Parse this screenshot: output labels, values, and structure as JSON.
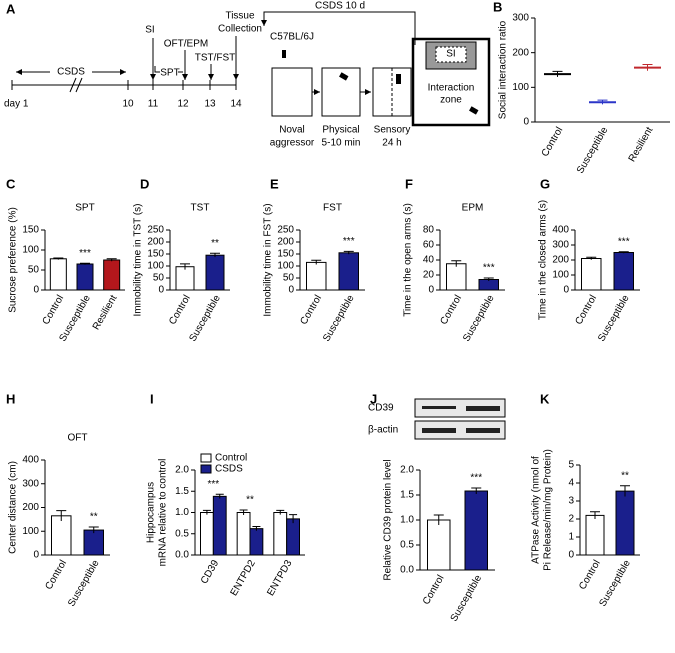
{
  "panel_a": {
    "label": "A",
    "timeline": {
      "start": "day 1",
      "days": [
        "10",
        "11",
        "12",
        "13",
        "14"
      ],
      "csds": "CSDS",
      "si": "SI",
      "oft_epm": "OFT/EPM",
      "spt": "SPT",
      "tst_fst": "TST/FST",
      "tissue": [
        "Tissue",
        "Collection"
      ]
    },
    "protocol": {
      "title": "CSDS 10 d",
      "strain": "C57BL/6J",
      "steps": [
        [
          "Noval",
          "aggressor"
        ],
        [
          "Physical",
          "5-10 min"
        ],
        [
          "Sensory",
          "24 h"
        ]
      ],
      "si_box": "SI",
      "zone": [
        "Interaction",
        "zone"
      ]
    }
  },
  "chart_data": [
    {
      "type": "strip",
      "panel": "B",
      "ylabel": "Social interaction ratio",
      "categories": [
        "Control",
        "Susceptible",
        "Resilient"
      ],
      "values": [
        138,
        57,
        157
      ],
      "errors": [
        8,
        6,
        9
      ],
      "colors": [
        "#000000",
        "#2b35c8",
        "#c0282d"
      ],
      "ylim": [
        0,
        300
      ],
      "yticks": [
        0,
        100,
        200,
        300
      ]
    },
    {
      "type": "bar",
      "panel": "C",
      "title": "SPT",
      "ylabel": "Sucrose preference (%)",
      "categories": [
        "Control",
        "Susceptible",
        "Resilient"
      ],
      "values": [
        78,
        65,
        75
      ],
      "errors": [
        2,
        2,
        3
      ],
      "colors": [
        "#ffffff",
        "#1a1f8c",
        "#b3171c"
      ],
      "annotations": [
        null,
        "***",
        null
      ],
      "ylim": [
        0,
        150
      ],
      "yticks": [
        0,
        50,
        100,
        150
      ]
    },
    {
      "type": "bar",
      "panel": "D",
      "title": "TST",
      "ylabel": "Immobility time in TST (s)",
      "categories": [
        "Control",
        "Susceptible"
      ],
      "values": [
        97,
        145
      ],
      "errors": [
        12,
        8
      ],
      "colors": [
        "#ffffff",
        "#1a1f8c"
      ],
      "annotations": [
        null,
        "**"
      ],
      "ylim": [
        0,
        250
      ],
      "yticks": [
        0,
        50,
        100,
        150,
        200,
        250
      ]
    },
    {
      "type": "bar",
      "panel": "E",
      "title": "FST",
      "ylabel": "Immobility time in FST (s)",
      "categories": [
        "Control",
        "Susceptible"
      ],
      "values": [
        115,
        155
      ],
      "errors": [
        9,
        6
      ],
      "colors": [
        "#ffffff",
        "#1a1f8c"
      ],
      "annotations": [
        null,
        "***"
      ],
      "ylim": [
        0,
        250
      ],
      "yticks": [
        0,
        50,
        100,
        150,
        200,
        250
      ]
    },
    {
      "type": "bar",
      "panel": "F",
      "title": "EPM",
      "ylabel": "Time in the open arms (s)",
      "categories": [
        "Control",
        "Susceptible"
      ],
      "values": [
        35,
        14
      ],
      "errors": [
        4,
        2
      ],
      "colors": [
        "#ffffff",
        "#1a1f8c"
      ],
      "annotations": [
        null,
        "***"
      ],
      "ylim": [
        0,
        80
      ],
      "yticks": [
        0,
        20,
        40,
        60,
        80
      ]
    },
    {
      "type": "bar",
      "panel": "G",
      "ylabel": "Time in the closed arms (s)",
      "categories": [
        "Control",
        "Susceptible"
      ],
      "values": [
        210,
        250
      ],
      "errors": [
        8,
        5
      ],
      "colors": [
        "#ffffff",
        "#1a1f8c"
      ],
      "annotations": [
        null,
        "***"
      ],
      "ylim": [
        0,
        400
      ],
      "yticks": [
        0,
        100,
        200,
        300,
        400
      ]
    },
    {
      "type": "bar",
      "panel": "H",
      "title": "OFT",
      "ylabel": "Center distance (cm)",
      "categories": [
        "Control",
        "Susceptible"
      ],
      "values": [
        165,
        105
      ],
      "errors": [
        22,
        13
      ],
      "colors": [
        "#ffffff",
        "#1a1f8c"
      ],
      "annotations": [
        null,
        "**"
      ],
      "ylim": [
        0,
        400
      ],
      "yticks": [
        0,
        100,
        200,
        300,
        400
      ]
    },
    {
      "type": "grouped",
      "panel": "I",
      "ylabel": [
        "Hippocampus",
        "mRNA relative to control"
      ],
      "categories": [
        "CD39",
        "ENTPD2",
        "ENTPD3"
      ],
      "series": [
        {
          "name": "Control",
          "color": "#ffffff",
          "values": [
            1.0,
            1.0,
            1.0
          ],
          "errors": [
            0.05,
            0.06,
            0.05
          ]
        },
        {
          "name": "CSDS",
          "color": "#1a1f8c",
          "values": [
            1.38,
            0.62,
            0.85
          ],
          "errors": [
            0.05,
            0.05,
            0.1
          ]
        }
      ],
      "annotations": [
        "***",
        "**",
        null
      ],
      "ylim": [
        0,
        2
      ],
      "yticks": [
        {
          "value": 0,
          "label": "0.0"
        },
        {
          "value": 0.5,
          "label": "0.5"
        },
        {
          "value": 1,
          "label": "1.0"
        },
        {
          "value": 1.5,
          "label": "1.5"
        },
        {
          "value": 2,
          "label": "2.0"
        }
      ]
    },
    {
      "type": "bar",
      "panel": "J",
      "blot_labels": [
        "CD39",
        "β-actin"
      ],
      "ylabel": "Relative CD39 protein level",
      "categories": [
        "Control",
        "Susceptible"
      ],
      "values": [
        1.0,
        1.58
      ],
      "errors": [
        0.1,
        0.06
      ],
      "colors": [
        "#ffffff",
        "#1a1f8c"
      ],
      "annotations": [
        null,
        "***"
      ],
      "ylim": [
        0,
        2
      ],
      "yticks": [
        {
          "value": 0,
          "label": "0.0"
        },
        {
          "value": 0.5,
          "label": "0.5"
        },
        {
          "value": 1,
          "label": "1.0"
        },
        {
          "value": 1.5,
          "label": "1.5"
        },
        {
          "value": 2,
          "label": "2.0"
        }
      ]
    },
    {
      "type": "bar",
      "panel": "K",
      "ylabel": [
        "ATPase Activity (nmol of",
        "Pi Release/min/mg Protein)"
      ],
      "categories": [
        "Control",
        "Susceptible"
      ],
      "values": [
        2.2,
        3.55
      ],
      "errors": [
        0.2,
        0.3
      ],
      "colors": [
        "#ffffff",
        "#1a1f8c"
      ],
      "annotations": [
        null,
        "**"
      ],
      "ylim": [
        0,
        5
      ],
      "yticks": [
        0,
        1,
        2,
        3,
        4,
        5
      ]
    }
  ]
}
